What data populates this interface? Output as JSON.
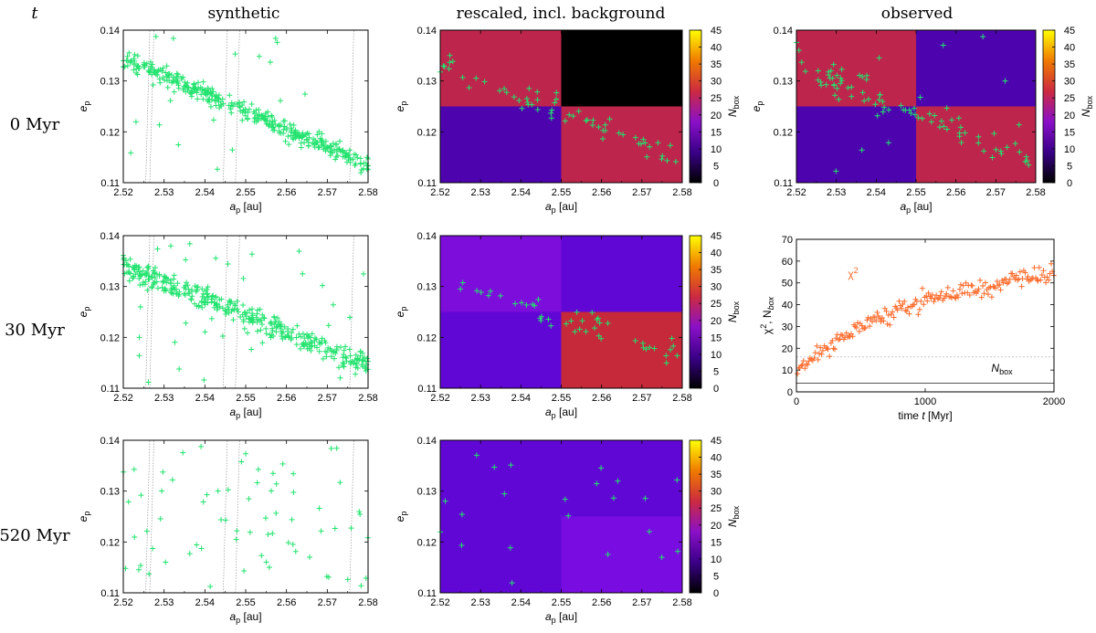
{
  "titles": {
    "t": "t",
    "synthetic": "synthetic",
    "rescaled": "rescaled, incl. background",
    "observed": "observed"
  },
  "rows": [
    "0 Myr",
    "30 Myr",
    "520 Myr"
  ],
  "axes": {
    "ap_label": "a",
    "ap_sub": "p",
    "ap_unit": " [au]",
    "ep_label": "e",
    "ep_sub": "p",
    "nbox_label": "N",
    "nbox_sub": "box",
    "time_label": "time ",
    "time_t": "t",
    "time_unit": " [Myr]",
    "chi_label": "χ",
    "chi_sup": "2",
    "chi_rest": ", N",
    "chi_sub": "box"
  },
  "colors": {
    "points": "#22e36e",
    "chi": "#ff6a2a",
    "nbox_line": "#555555",
    "chi_ref": "#aaaaaa"
  },
  "colorbar": {
    "min": 0,
    "max": 45,
    "ticks": [
      0,
      5,
      10,
      15,
      20,
      25,
      30,
      35,
      40,
      45
    ]
  },
  "chart_data": [
    {
      "type": "scatter",
      "panel": "synthetic, 0 Myr",
      "xlim": [
        2.52,
        2.58
      ],
      "ylim": [
        0.11,
        0.14
      ],
      "xticks": [
        2.52,
        2.53,
        2.54,
        2.55,
        2.56,
        2.57,
        2.58
      ],
      "yticks": [
        0.11,
        0.12,
        0.13,
        0.14
      ],
      "distribution": "dense diagonal band from (2.52, 0.134) to (2.58, 0.114), about 400 points"
    },
    {
      "type": "heatmap",
      "panel": "rescaled, incl. background, 0 Myr",
      "xlim": [
        2.52,
        2.58
      ],
      "ylim": [
        0.11,
        0.14
      ],
      "boxes": [
        {
          "a": [
            2.52,
            2.55
          ],
          "e": [
            0.125,
            0.14
          ],
          "value": 24
        },
        {
          "a": [
            2.55,
            2.58
          ],
          "e": [
            0.125,
            0.14
          ],
          "value": 0
        },
        {
          "a": [
            2.52,
            2.55
          ],
          "e": [
            0.11,
            0.125
          ],
          "value": 10
        },
        {
          "a": [
            2.55,
            2.58
          ],
          "e": [
            0.11,
            0.125
          ],
          "value": 24
        }
      ],
      "points": "about 70 selected synthetic bodies along diagonal band"
    },
    {
      "type": "heatmap",
      "panel": "observed, 0 Myr",
      "xlim": [
        2.52,
        2.58
      ],
      "ylim": [
        0.11,
        0.14
      ],
      "boxes": [
        {
          "a": [
            2.52,
            2.55
          ],
          "e": [
            0.125,
            0.14
          ],
          "value": 24
        },
        {
          "a": [
            2.55,
            2.58
          ],
          "e": [
            0.125,
            0.14
          ],
          "value": 10
        },
        {
          "a": [
            2.52,
            2.55
          ],
          "e": [
            0.11,
            0.125
          ],
          "value": 10
        },
        {
          "a": [
            2.55,
            2.58
          ],
          "e": [
            0.11,
            0.125
          ],
          "value": 24
        }
      ],
      "points": "about 90 observed asteroids"
    },
    {
      "type": "scatter",
      "panel": "synthetic, 30 Myr",
      "xlim": [
        2.52,
        2.58
      ],
      "ylim": [
        0.11,
        0.14
      ],
      "distribution": "diagonal band from (2.52, 0.134) to (2.58, 0.115), about 400 points, slightly more spread"
    },
    {
      "type": "heatmap",
      "panel": "rescaled, incl. background, 30 Myr",
      "xlim": [
        2.52,
        2.58
      ],
      "ylim": [
        0.11,
        0.14
      ],
      "boxes": [
        {
          "a": [
            2.52,
            2.55
          ],
          "e": [
            0.125,
            0.14
          ],
          "value": 15
        },
        {
          "a": [
            2.55,
            2.58
          ],
          "e": [
            0.125,
            0.14
          ],
          "value": 11
        },
        {
          "a": [
            2.52,
            2.55
          ],
          "e": [
            0.11,
            0.125
          ],
          "value": 11
        },
        {
          "a": [
            2.55,
            2.58
          ],
          "e": [
            0.11,
            0.125
          ],
          "value": 25
        }
      ]
    },
    {
      "type": "scatter",
      "panel": "chi^2 vs time",
      "xlim": [
        0,
        2000
      ],
      "ylim": [
        0,
        70
      ],
      "xticks": [
        0,
        1000,
        2000
      ],
      "yticks": [
        0,
        10,
        20,
        30,
        40,
        50,
        60,
        70
      ],
      "series": [
        {
          "name": "χ²",
          "x": [
            0,
            100,
            200,
            300,
            400,
            500,
            600,
            700,
            800,
            900,
            1000,
            1100,
            1200,
            1300,
            1400,
            1500,
            1600,
            1700,
            1800,
            1900,
            2000
          ],
          "y": [
            9,
            15,
            19,
            23,
            26,
            30,
            33,
            36,
            38,
            40,
            42,
            43,
            44,
            46,
            47,
            48,
            50,
            51,
            53,
            54,
            55
          ]
        },
        {
          "name": "N_box",
          "x": [
            0,
            2000
          ],
          "y": [
            4,
            4
          ]
        }
      ],
      "reference_line_y": 16,
      "annotations": [
        "χ²",
        "N_box"
      ]
    },
    {
      "type": "scatter",
      "panel": "synthetic, 520 Myr",
      "xlim": [
        2.52,
        2.58
      ],
      "ylim": [
        0.11,
        0.14
      ],
      "distribution": "sparse scattered points, about 70, no clear band"
    },
    {
      "type": "heatmap",
      "panel": "rescaled, incl. background, 520 Myr",
      "xlim": [
        2.52,
        2.58
      ],
      "ylim": [
        0.11,
        0.14
      ],
      "boxes": [
        {
          "a": [
            2.52,
            2.55
          ],
          "e": [
            0.125,
            0.14
          ],
          "value": 11
        },
        {
          "a": [
            2.55,
            2.58
          ],
          "e": [
            0.125,
            0.14
          ],
          "value": 11
        },
        {
          "a": [
            2.52,
            2.55
          ],
          "e": [
            0.11,
            0.125
          ],
          "value": 11
        },
        {
          "a": [
            2.55,
            2.58
          ],
          "e": [
            0.11,
            0.125
          ],
          "value": 14
        }
      ]
    }
  ]
}
